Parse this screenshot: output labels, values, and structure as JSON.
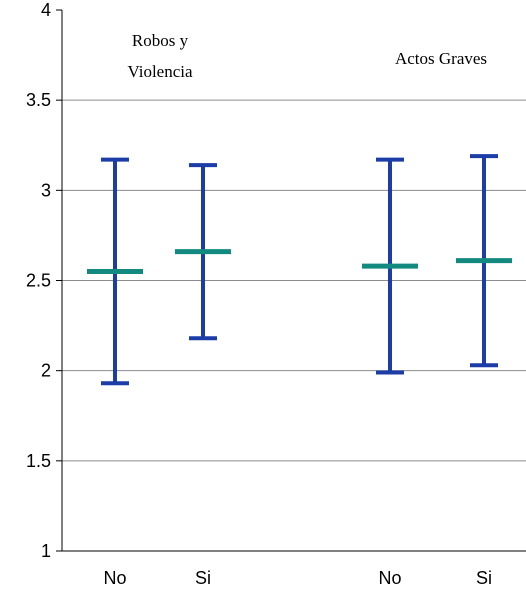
{
  "chart_data": {
    "type": "error-bar",
    "ylim": [
      1,
      4
    ],
    "yticks": [
      "1",
      "1.5",
      "2",
      "2.5",
      "3",
      "3.5",
      "4"
    ],
    "categories": [
      "No",
      "Si",
      "No",
      "Si"
    ],
    "groups": [
      "Robos y Violencia",
      "Actos Graves"
    ],
    "annotations": {
      "group1_line1": "Robos y",
      "group1_line2": "Violencia",
      "group2": "Actos Graves"
    },
    "points": [
      {
        "category": "No",
        "group": "Robos y Violencia",
        "mean": 2.55,
        "low": 1.93,
        "high": 3.17
      },
      {
        "category": "Si",
        "group": "Robos y Violencia",
        "mean": 2.66,
        "low": 2.18,
        "high": 3.14
      },
      {
        "category": "No",
        "group": "Actos Graves",
        "mean": 2.58,
        "low": 1.99,
        "high": 3.17
      },
      {
        "category": "Si",
        "group": "Actos Graves",
        "mean": 2.61,
        "low": 2.03,
        "high": 3.19
      }
    ],
    "grid": true,
    "colors": {
      "error_bar": "#1c3ca8",
      "mean": "#138a80",
      "grid": "#8c8c8c",
      "axis": "#000000"
    }
  }
}
